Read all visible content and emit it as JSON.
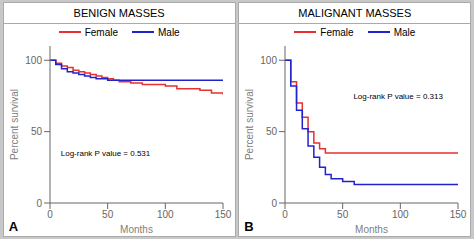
{
  "chart_data": [
    {
      "type": "step",
      "title": "BENIGN MASSES",
      "panel_label": "A",
      "xlabel": "Months",
      "ylabel": "Percent survival",
      "xlim": [
        0,
        150
      ],
      "ylim": [
        0,
        110
      ],
      "xticks": [
        0,
        50,
        100,
        150
      ],
      "yticks": [
        0,
        50,
        100
      ],
      "legend": "top",
      "grid": false,
      "annotations": [
        {
          "text": "Log-rank P value = 0.531",
          "x": 5,
          "y": 35
        }
      ],
      "series": [
        {
          "name": "Female",
          "color": "#e83030",
          "x": [
            0,
            5,
            10,
            15,
            20,
            25,
            30,
            35,
            40,
            45,
            50,
            55,
            60,
            65,
            70,
            80,
            90,
            100,
            110,
            120,
            130,
            140,
            150
          ],
          "values": [
            100,
            98,
            96,
            95,
            93,
            92,
            91,
            90,
            89,
            88,
            87,
            86,
            85,
            85,
            84,
            83,
            83,
            82,
            80,
            80,
            79,
            77,
            76
          ]
        },
        {
          "name": "Male",
          "color": "#2222cc",
          "x": [
            0,
            5,
            10,
            15,
            20,
            25,
            30,
            35,
            40,
            45,
            50,
            55,
            60,
            65,
            70,
            80,
            90,
            100,
            110,
            120,
            130,
            140,
            150
          ],
          "values": [
            100,
            97,
            94,
            92,
            91,
            90,
            89,
            88,
            87,
            87,
            86,
            86,
            86,
            86,
            86,
            86,
            86,
            86,
            86,
            86,
            86,
            86,
            86
          ]
        }
      ]
    },
    {
      "type": "step",
      "title": "MALIGNANT MASSES",
      "panel_label": "B",
      "xlabel": "Months",
      "ylabel": "Percent survival",
      "xlim": [
        0,
        150
      ],
      "ylim": [
        0,
        110
      ],
      "xticks": [
        0,
        50,
        100,
        150
      ],
      "yticks": [
        0,
        50,
        100
      ],
      "legend": "top",
      "grid": false,
      "annotations": [
        {
          "text": "Log-rank P value = 0.313",
          "x": 55,
          "y": 75
        }
      ],
      "series": [
        {
          "name": "Female",
          "color": "#e83030",
          "x": [
            0,
            5,
            10,
            15,
            20,
            25,
            30,
            35,
            40,
            50,
            60,
            80,
            100,
            120,
            140,
            150
          ],
          "values": [
            100,
            85,
            70,
            60,
            50,
            42,
            38,
            35,
            35,
            35,
            35,
            35,
            35,
            35,
            35,
            35
          ]
        },
        {
          "name": "Male",
          "color": "#2222cc",
          "x": [
            0,
            5,
            10,
            15,
            20,
            25,
            30,
            35,
            40,
            45,
            50,
            55,
            60,
            65,
            80,
            100,
            120,
            140,
            150
          ],
          "values": [
            100,
            82,
            65,
            52,
            40,
            32,
            25,
            20,
            17,
            17,
            15,
            15,
            13,
            13,
            13,
            13,
            13,
            13,
            13
          ]
        }
      ]
    }
  ]
}
